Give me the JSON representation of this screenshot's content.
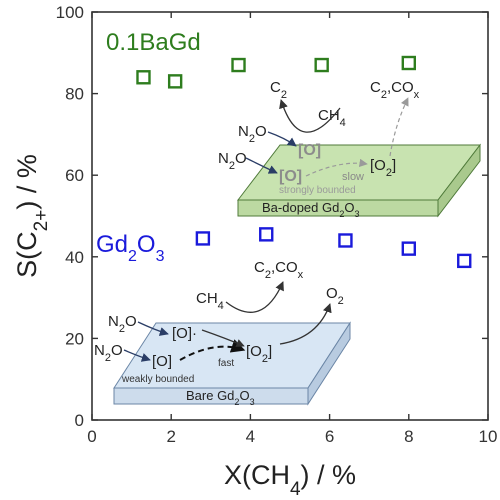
{
  "chart_data": {
    "type": "scatter",
    "xlabel": "X(CH4) / %",
    "ylabel": "S(C2+) / %",
    "xlim": [
      0,
      10
    ],
    "ylim": [
      0,
      100
    ],
    "xticks": [
      0,
      2,
      4,
      6,
      8,
      10
    ],
    "yticks": [
      0,
      20,
      40,
      60,
      80,
      100
    ],
    "xtick_labels": [
      "0",
      "2",
      "4",
      "6",
      "8",
      "10"
    ],
    "ytick_labels": [
      "0",
      "20",
      "40",
      "60",
      "80",
      "100"
    ],
    "grid": false,
    "legend": "none",
    "series": [
      {
        "name": "0.1BaGd",
        "color": "#2e7d1e",
        "marker": "open-square",
        "points": [
          {
            "x": 1.3,
            "y": 84
          },
          {
            "x": 2.1,
            "y": 83
          },
          {
            "x": 3.7,
            "y": 87
          },
          {
            "x": 5.8,
            "y": 87
          },
          {
            "x": 8.0,
            "y": 87.5
          }
        ]
      },
      {
        "name": "Gd2O3",
        "color": "#1a1adb",
        "marker": "open-square",
        "points": [
          {
            "x": 2.8,
            "y": 44.5
          },
          {
            "x": 4.4,
            "y": 45.5
          },
          {
            "x": 6.4,
            "y": 44
          },
          {
            "x": 8.0,
            "y": 42
          },
          {
            "x": 9.4,
            "y": 39
          }
        ]
      }
    ],
    "annotations": {
      "upper_panel": {
        "fill": "#c8e3b0",
        "surface_label": "Ba-doped Gd2O3",
        "n2o_1": "N2O",
        "n2o_2": "N2O",
        "o_1": "[O]",
        "o_2": "[O]",
        "o2": "[O2]",
        "ch4": "CH4",
        "c2": "C2",
        "c2cox": "C2,COx",
        "slow": "slow",
        "note": "strongly bounded"
      },
      "lower_panel": {
        "fill": "#d8e6f4",
        "surface_label": "Bare Gd2O3",
        "n2o_1": "N2O",
        "n2o_2": "N2O",
        "o_1": "[O]·",
        "o_2": "[O]",
        "o2": "[O2]",
        "ch4": "CH4",
        "c2cox": "C2,COx",
        "o2_gas": "O2",
        "fast": "fast",
        "note": "weakly bounded"
      }
    }
  }
}
